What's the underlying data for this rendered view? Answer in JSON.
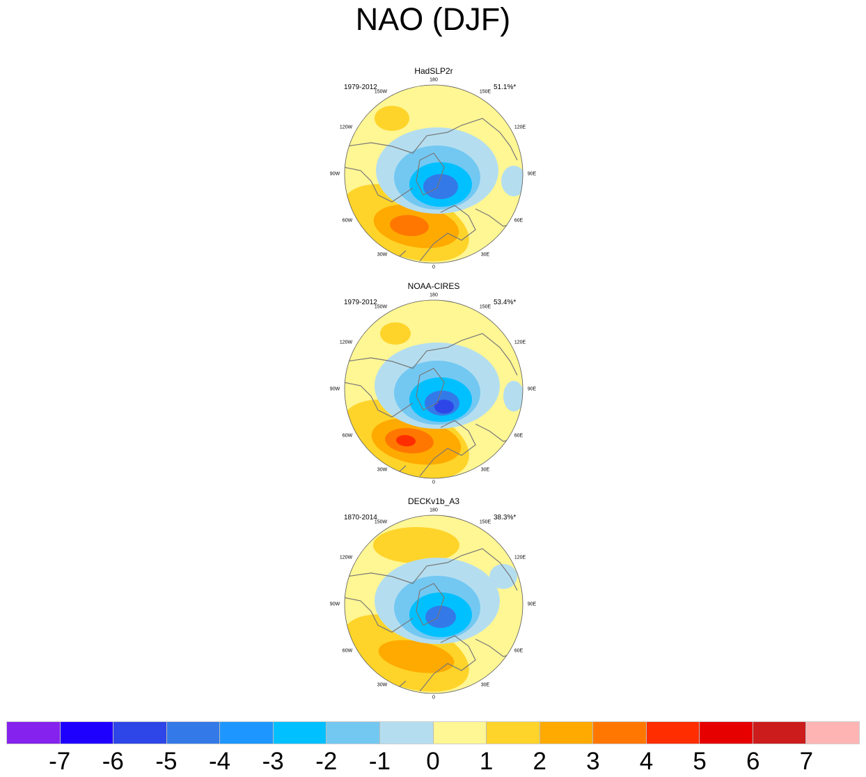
{
  "title": "NAO (DJF)",
  "panels": [
    {
      "name": "HadSLP2r",
      "period": "1979-2012",
      "variance": "51.1%*",
      "variant": 0
    },
    {
      "name": "NOAA-CIRES",
      "period": "1979-2012",
      "variance": "53.4%*",
      "variant": 1
    },
    {
      "name": "DECKv1b_A3",
      "period": "1870-2014",
      "variance": "38.3%*",
      "variant": 2
    }
  ],
  "longitude_labels": [
    "180",
    "150W",
    "150E",
    "120W",
    "120E",
    "90W",
    "90E",
    "60W",
    "60E",
    "30W",
    "30E",
    "0"
  ],
  "colorbar": {
    "levels": [
      "-7",
      "-6",
      "-5",
      "-4",
      "-3",
      "-2",
      "-1",
      "0",
      "1",
      "2",
      "3",
      "4",
      "5",
      "6",
      "7"
    ],
    "colors": [
      "#8522ED",
      "#1E00FF",
      "#2E46E8",
      "#3479E8",
      "#1E96FF",
      "#00C0FF",
      "#73C8F2",
      "#B4DEF0",
      "#FFF694",
      "#FFD42A",
      "#FFAA00",
      "#FF7700",
      "#FF2D00",
      "#E60000",
      "#CC1C1C",
      "#FFB4B4"
    ]
  }
}
